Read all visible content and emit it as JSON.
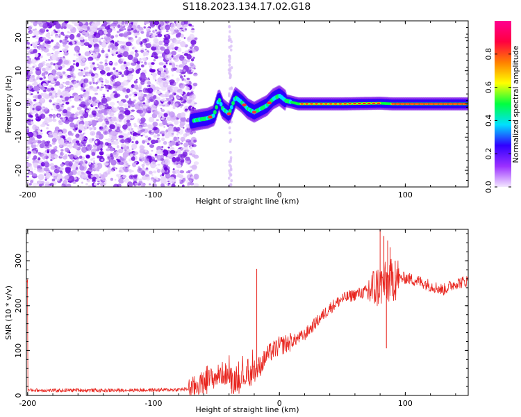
{
  "title": "S118.2023.134.17.02.G18",
  "chart_data": [
    {
      "type": "heatmap",
      "xlabel": "Height of straight line (km)",
      "ylabel": "Frequency (Hz)",
      "xlim": [
        -201,
        150
      ],
      "ylim": [
        -25,
        25
      ],
      "xticks": [
        -200,
        -100,
        0,
        100
      ],
      "yticks": [
        -20,
        -10,
        0,
        10,
        20
      ],
      "colorbar": {
        "label": "Normalized spectral amplitude",
        "range": [
          0.0,
          1.0
        ],
        "ticks": [
          "0.0",
          "0.2",
          "0.4",
          "0.6",
          "0.8"
        ],
        "tick_values": [
          0.0,
          0.2,
          0.4,
          0.6,
          0.8
        ],
        "colormap": [
          "#f4e8ff",
          "#9b30ff",
          "#3000ff",
          "#00e0ff",
          "#00ff40",
          "#ffff00",
          "#ff8000",
          "#ff0040",
          "#ff0090"
        ]
      },
      "noise_region_x": [
        -201,
        -66
      ],
      "ridge": [
        {
          "x": -70,
          "y": -5.2
        },
        {
          "x": -62,
          "y": -4.6
        },
        {
          "x": -57,
          "y": -4.3
        },
        {
          "x": -52,
          "y": -3.5
        },
        {
          "x": -48,
          "y": 1.5
        },
        {
          "x": -45,
          "y": -1.5
        },
        {
          "x": -40,
          "y": -3.0
        },
        {
          "x": -35,
          "y": 2.0
        },
        {
          "x": -30,
          "y": 0.5
        },
        {
          "x": -25,
          "y": -1.5
        },
        {
          "x": -20,
          "y": -2.5
        },
        {
          "x": -15,
          "y": -1.5
        },
        {
          "x": -10,
          "y": -0.5
        },
        {
          "x": -5,
          "y": 1.5
        },
        {
          "x": 0,
          "y": 2.5
        },
        {
          "x": 5,
          "y": 1.0
        },
        {
          "x": 10,
          "y": 0.5
        },
        {
          "x": 15,
          "y": 0.0
        },
        {
          "x": 50,
          "y": 0.0
        },
        {
          "x": 80,
          "y": 0.2
        },
        {
          "x": 90,
          "y": 0.0
        },
        {
          "x": 150,
          "y": 0.0
        }
      ]
    },
    {
      "type": "line",
      "xlabel": "Height of straight line (km)",
      "ylabel": "SNR (10 * v/v)",
      "xlim": [
        -201,
        150
      ],
      "ylim": [
        0,
        370
      ],
      "xticks": [
        -200,
        -100,
        0,
        100
      ],
      "yticks": [
        0,
        100,
        200,
        300
      ],
      "color": "#e8251e",
      "series": [
        {
          "x": [
            -200,
            -180,
            -160,
            -140,
            -120,
            -100,
            -80,
            -70,
            -60,
            -50,
            -45,
            -40,
            -35,
            -30,
            -25,
            -20,
            -15,
            -10,
            -5,
            0,
            10,
            20,
            30,
            40,
            50,
            60,
            70,
            80,
            85,
            90,
            100,
            110,
            120,
            130,
            140,
            150
          ],
          "values": [
            12,
            11,
            12,
            11,
            12,
            12,
            13,
            15,
            30,
            42,
            50,
            45,
            30,
            45,
            40,
            55,
            65,
            90,
            100,
            110,
            120,
            135,
            165,
            195,
            215,
            225,
            232,
            245,
            250,
            258,
            262,
            255,
            245,
            235,
            250,
            255
          ]
        }
      ],
      "spikes": [
        {
          "x": -18,
          "y": 282
        },
        {
          "x": 80,
          "y": 370
        },
        {
          "x": 83,
          "y": 355
        },
        {
          "x": 86,
          "y": 345
        },
        {
          "x": 88,
          "y": 330
        },
        {
          "x": 92,
          "y": 300
        },
        {
          "x": 85,
          "y": 105
        }
      ]
    }
  ]
}
